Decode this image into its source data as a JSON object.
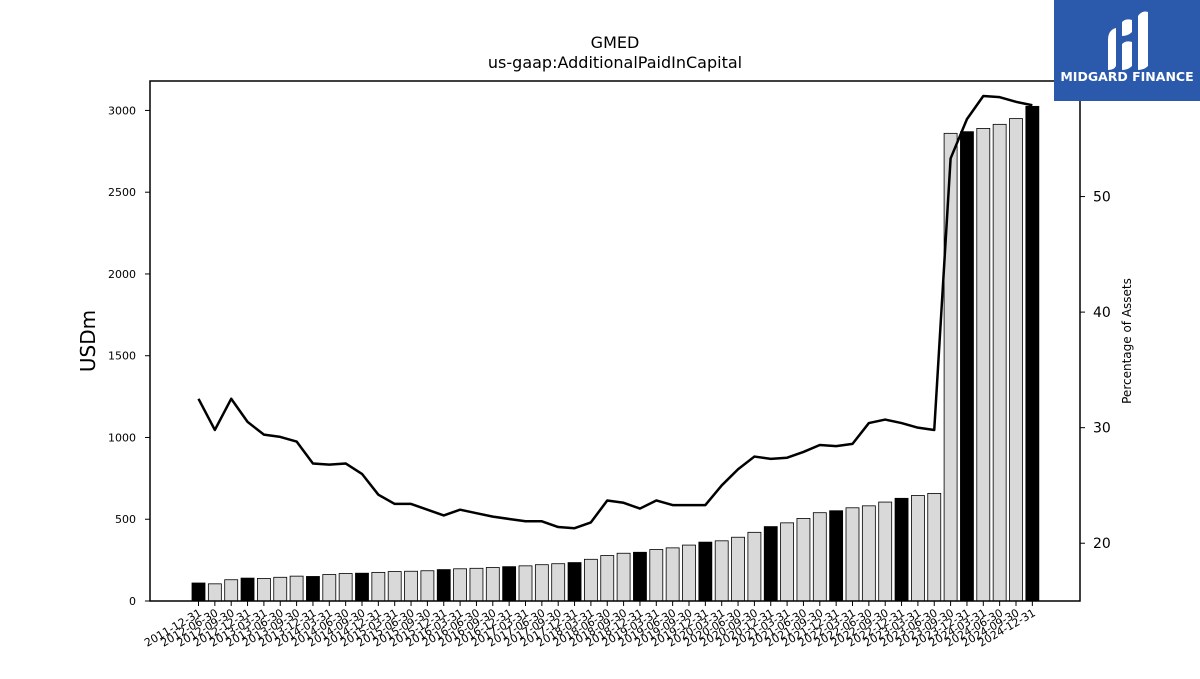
{
  "logo": {
    "text": "MIDGARD FINANCE",
    "bg_color": "#2b5aad"
  },
  "chart_data": {
    "type": "bar",
    "title": "GMED",
    "subtitle": "us-gaap:AdditionalPaidInCapital",
    "ylabel": "USDm",
    "y2label": "Percentage of Assets",
    "ylim": [
      0,
      3180
    ],
    "y2lim": [
      15,
      60
    ],
    "yticks": [
      0,
      500,
      1000,
      1500,
      2000,
      2500,
      3000
    ],
    "y2ticks": [
      20,
      30,
      40,
      50
    ],
    "grid": false,
    "colors": {
      "annual_bar": "#000000",
      "quarter_bar": "#d9d9d9",
      "line": "#000000",
      "edge": "#000000"
    },
    "categories": [
      "2011-12-31",
      "2012-06-30",
      "2012-09-30",
      "2012-12-31",
      "2013-03-31",
      "2013-06-30",
      "2013-09-30",
      "2013-12-31",
      "2014-03-31",
      "2014-06-30",
      "2014-09-30",
      "2014-12-31",
      "2015-03-31",
      "2015-06-30",
      "2015-09-30",
      "2015-12-31",
      "2016-03-31",
      "2016-06-30",
      "2016-09-30",
      "2016-12-31",
      "2017-03-31",
      "2017-06-30",
      "2017-09-30",
      "2017-12-31",
      "2018-03-31",
      "2018-06-30",
      "2018-09-30",
      "2018-12-31",
      "2019-03-31",
      "2019-06-30",
      "2019-09-30",
      "2019-12-31",
      "2020-03-31",
      "2020-06-30",
      "2020-09-30",
      "2020-12-31",
      "2021-03-31",
      "2021-06-30",
      "2021-09-30",
      "2021-12-31",
      "2022-03-31",
      "2022-06-30",
      "2022-09-30",
      "2022-12-31",
      "2023-03-31",
      "2023-06-30",
      "2023-09-30",
      "2023-12-31",
      "2024-03-31",
      "2024-06-30",
      "2024-09-30",
      "2024-12-31"
    ],
    "x_tick_labels": [
      "2011-12-31",
      "2012-06-30",
      "2012-09-30",
      "2012-12-31",
      "2013-03-31",
      "2013-06-30",
      "2013-09-30",
      "2013-12-31",
      "2014-03-31",
      "2014-06-30",
      "2014-09-30",
      "2014-12-31",
      "2015-03-31",
      "2015-06-30",
      "2015-09-30",
      "2015-12-31",
      "2016-03-31",
      "2016-06-30",
      "2016-09-30",
      "2016-12-31",
      "2017-03-31",
      "2017-06-30",
      "2017-09-30",
      "2017-12-31",
      "2018-03-31",
      "2018-06-30",
      "2018-09-30",
      "2018-12-31",
      "2019-03-31",
      "2019-06-30",
      "2019-09-30",
      "2019-12-31",
      "2020-03-31",
      "2020-06-30",
      "2020-09-30",
      "2020-12-31",
      "2021-03-31",
      "2021-06-30",
      "2021-09-30",
      "2021-12-31",
      "2022-03-31",
      "2022-06-30",
      "2022-09-30",
      "2022-12-31",
      "2023-03-31",
      "2023-06-30",
      "2023-09-30",
      "2023-12-31",
      "2024-03-31",
      "2024-06-30",
      "2024-09-30",
      "2024-12-31"
    ],
    "series": [
      {
        "type": "bar",
        "axis": "left",
        "values": [
          110,
          105,
          130,
          140,
          138,
          145,
          152,
          150,
          162,
          168,
          170,
          175,
          180,
          182,
          185,
          192,
          197,
          200,
          205,
          210,
          215,
          222,
          228,
          235,
          255,
          278,
          292,
          298,
          315,
          325,
          342,
          360,
          368,
          390,
          420,
          455,
          478,
          505,
          540,
          552,
          570,
          582,
          605,
          628,
          645,
          658,
          2860,
          2870,
          2890,
          2915,
          2950,
          3025
        ],
        "annual": [
          true,
          false,
          false,
          true,
          false,
          false,
          false,
          true,
          false,
          false,
          true,
          false,
          false,
          false,
          false,
          true,
          false,
          false,
          false,
          true,
          false,
          false,
          false,
          true,
          false,
          false,
          false,
          true,
          false,
          false,
          false,
          true,
          false,
          false,
          false,
          true,
          false,
          false,
          false,
          true,
          false,
          false,
          false,
          true,
          false,
          false,
          false,
          true,
          false,
          false,
          false,
          true
        ]
      },
      {
        "type": "line",
        "axis": "right",
        "values": [
          32.5,
          29.8,
          32.5,
          30.5,
          29.4,
          29.2,
          28.8,
          26.9,
          26.8,
          26.9,
          26.0,
          24.2,
          23.4,
          23.4,
          22.9,
          22.4,
          22.9,
          22.6,
          22.3,
          22.1,
          21.9,
          21.9,
          21.4,
          21.3,
          21.8,
          23.7,
          23.5,
          23.0,
          23.7,
          23.3,
          23.3,
          23.3,
          25.0,
          26.4,
          27.5,
          27.3,
          27.4,
          27.9,
          28.5,
          28.4,
          28.6,
          30.4,
          30.7,
          30.4,
          30.0,
          29.8,
          53.3,
          56.7,
          58.7,
          58.6,
          58.2,
          57.9
        ]
      }
    ]
  }
}
